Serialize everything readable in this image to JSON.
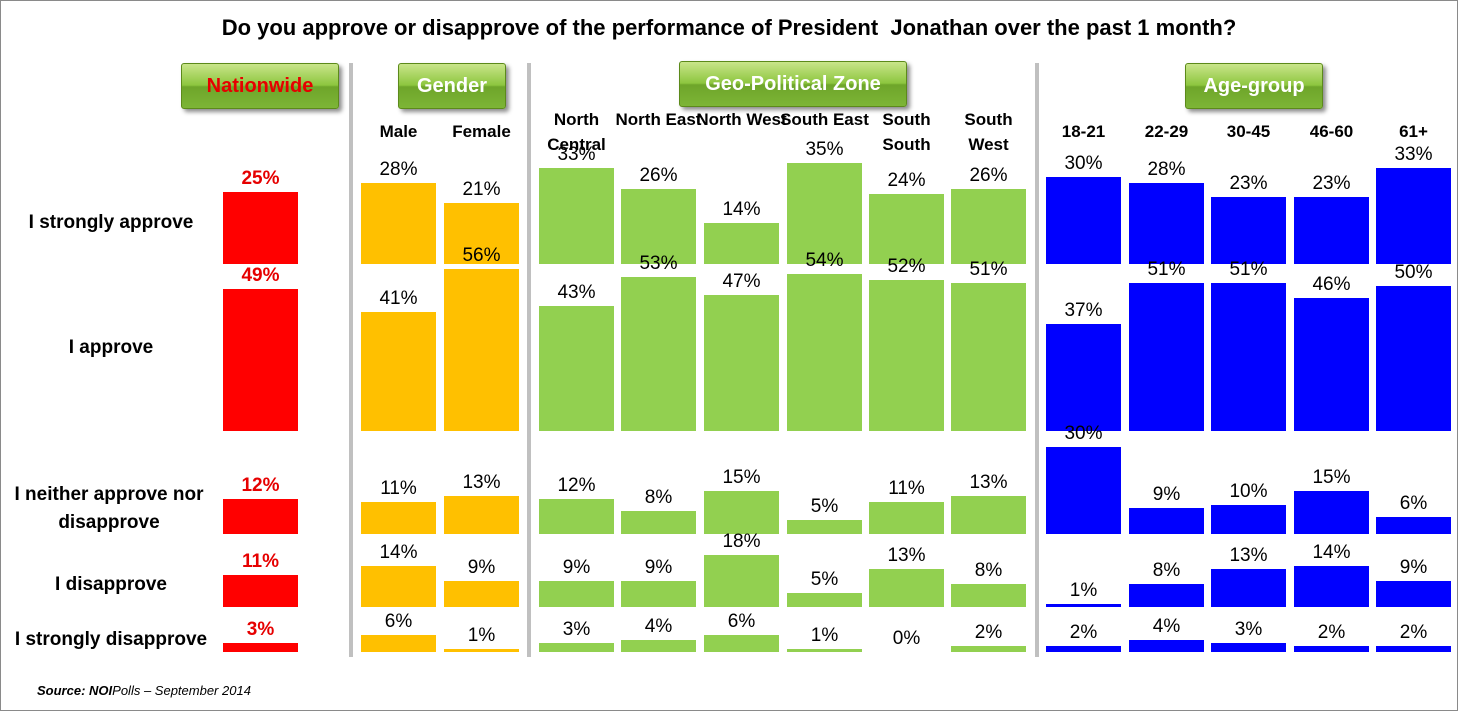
{
  "chart_data": {
    "type": "bar",
    "title": "Do you approve or disapprove of the performance of President  Jonathan over the past 1 month?",
    "unit": "%",
    "rows": [
      "I strongly approve",
      "I approve",
      "I neither approve nor disapprove",
      "I disapprove",
      "I strongly disapprove"
    ],
    "groups": [
      {
        "name": "Nationwide",
        "color": "#ff0000",
        "categories": [
          ""
        ],
        "values": [
          [
            25
          ],
          [
            49
          ],
          [
            12
          ],
          [
            11
          ],
          [
            3
          ]
        ]
      },
      {
        "name": "Gender",
        "color": "#ffc000",
        "categories": [
          "Male",
          "Female"
        ],
        "values": [
          [
            28,
            21
          ],
          [
            41,
            56
          ],
          [
            11,
            13
          ],
          [
            14,
            9
          ],
          [
            6,
            1
          ]
        ]
      },
      {
        "name": "Geo-Political Zone",
        "color": "#92d050",
        "categories": [
          "North Central",
          "North East",
          "North West",
          "South East",
          "South South",
          "South West"
        ],
        "values": [
          [
            33,
            26,
            14,
            35,
            24,
            26
          ],
          [
            43,
            53,
            47,
            54,
            52,
            51
          ],
          [
            12,
            8,
            15,
            5,
            11,
            13
          ],
          [
            9,
            9,
            18,
            5,
            13,
            8
          ],
          [
            3,
            4,
            6,
            1,
            0,
            2
          ]
        ]
      },
      {
        "name": "Age-group",
        "color": "#0000ff",
        "categories": [
          "18-21",
          "22-29",
          "30-45",
          "46-60",
          "61+"
        ],
        "values": [
          [
            30,
            28,
            23,
            23,
            33
          ],
          [
            37,
            51,
            51,
            46,
            50
          ],
          [
            30,
            9,
            10,
            15,
            6
          ],
          [
            1,
            8,
            13,
            14,
            9
          ],
          [
            2,
            4,
            3,
            2,
            2
          ]
        ]
      }
    ]
  },
  "source": {
    "label": "Source:",
    "org_bold": "NOI",
    "org_rest": "Polls",
    "date": " – September 2014"
  }
}
